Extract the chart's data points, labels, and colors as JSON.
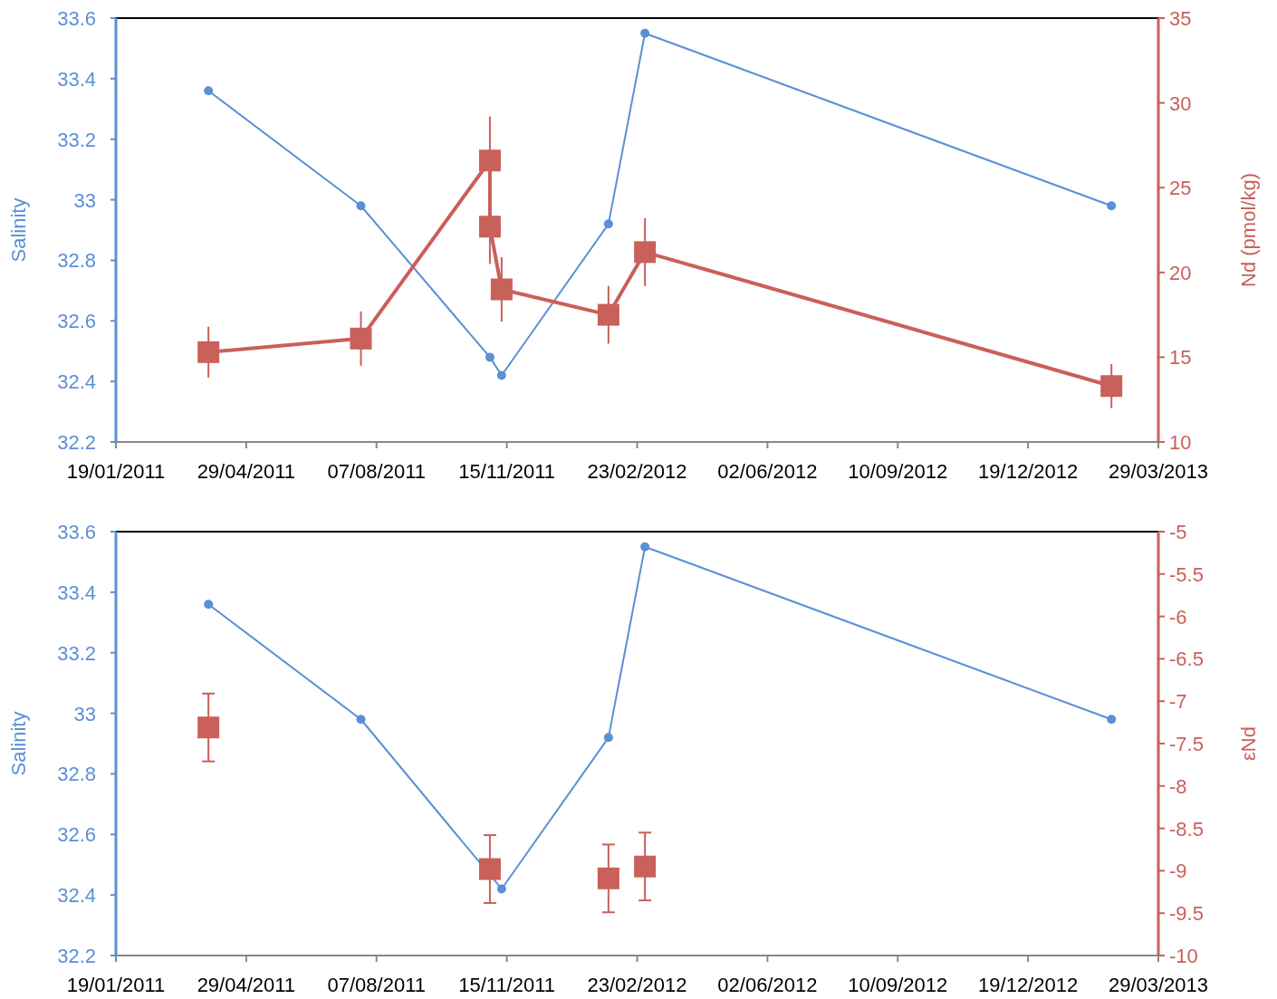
{
  "chart_data": [
    {
      "type": "line",
      "ylabel": "Salinity",
      "y2label": "Nd (pmol/kg)",
      "xlim": [
        "2011-01-19",
        "2013-03-29"
      ],
      "xticks": [
        {
          "value": "2011-01-19",
          "label": "19/01/2011"
        },
        {
          "value": "2011-04-29",
          "label": "29/04/2011"
        },
        {
          "value": "2011-08-07",
          "label": "07/08/2011"
        },
        {
          "value": "2011-11-15",
          "label": "15/11/2011"
        },
        {
          "value": "2012-02-23",
          "label": "23/02/2012"
        },
        {
          "value": "2012-06-02",
          "label": "02/06/2012"
        },
        {
          "value": "2012-09-10",
          "label": "10/09/2012"
        },
        {
          "value": "2012-12-19",
          "label": "19/12/2012"
        },
        {
          "value": "2013-03-29",
          "label": "29/03/2013"
        }
      ],
      "ylim": [
        32.2,
        33.6
      ],
      "yticks": [
        32.2,
        32.4,
        32.6,
        32.8,
        33,
        33.2,
        33.4,
        33.6
      ],
      "y2lim": [
        10,
        35
      ],
      "y2ticks": [
        10,
        15,
        20,
        25,
        30,
        35
      ],
      "grid": false,
      "series": [
        {
          "color": "#5b8fd6",
          "marker": "circle",
          "x": [
            "2011-03-31",
            "2011-07-26",
            "2011-11-02",
            "2011-11-11",
            "2012-02-01",
            "2012-02-29",
            "2013-02-21"
          ],
          "values": [
            33.36,
            32.98,
            32.48,
            32.42,
            32.92,
            33.55,
            32.98
          ]
        },
        {
          "axis": "y2",
          "color": "#c9605a",
          "marker": "square",
          "x": [
            "2011-03-31",
            "2011-07-26",
            "2011-11-02",
            "2011-11-02",
            "2011-11-11",
            "2012-02-01",
            "2012-02-29",
            "2013-02-21"
          ],
          "values": [
            15.3,
            16.1,
            26.6,
            22.7,
            19.0,
            17.5,
            21.2,
            13.3
          ],
          "errors": [
            1.5,
            1.6,
            2.6,
            2.2,
            1.9,
            1.7,
            2.0,
            1.3
          ]
        }
      ]
    },
    {
      "type": "line",
      "ylabel": "Salinity",
      "y2label": "εNd",
      "xlim": [
        "2011-01-19",
        "2013-03-29"
      ],
      "xticks": [
        {
          "value": "2011-01-19",
          "label": "19/01/2011"
        },
        {
          "value": "2011-04-29",
          "label": "29/04/2011"
        },
        {
          "value": "2011-08-07",
          "label": "07/08/2011"
        },
        {
          "value": "2011-11-15",
          "label": "15/11/2011"
        },
        {
          "value": "2012-02-23",
          "label": "23/02/2012"
        },
        {
          "value": "2012-06-02",
          "label": "02/06/2012"
        },
        {
          "value": "2012-09-10",
          "label": "10/09/2012"
        },
        {
          "value": "2012-12-19",
          "label": "19/12/2012"
        },
        {
          "value": "2013-03-29",
          "label": "29/03/2013"
        }
      ],
      "ylim": [
        32.2,
        33.6
      ],
      "yticks": [
        32.2,
        32.4,
        32.6,
        32.8,
        33,
        33.2,
        33.4,
        33.6
      ],
      "y2lim": [
        -10,
        -5
      ],
      "y2ticks": [
        -10,
        -9.5,
        -9,
        -8.5,
        -8,
        -7.5,
        -7,
        -6.5,
        -6,
        -5.5,
        -5
      ],
      "grid": false,
      "series": [
        {
          "color": "#5b8fd6",
          "marker": "circle",
          "x": [
            "2011-03-31",
            "2011-07-26",
            "2011-11-02",
            "2011-11-11",
            "2012-02-01",
            "2012-02-29",
            "2013-02-21"
          ],
          "values": [
            33.36,
            32.98,
            null,
            32.42,
            32.92,
            33.55,
            32.98
          ]
        },
        {
          "type": "scatter",
          "axis": "y2",
          "color": "#c9605a",
          "marker": "square",
          "x": [
            "2011-03-31",
            "2011-11-02",
            "2012-02-01",
            "2012-02-29"
          ],
          "values": [
            -7.31,
            -8.98,
            -9.09,
            -8.95
          ],
          "errors": [
            0.4,
            0.4,
            0.4,
            0.4
          ]
        }
      ]
    }
  ]
}
